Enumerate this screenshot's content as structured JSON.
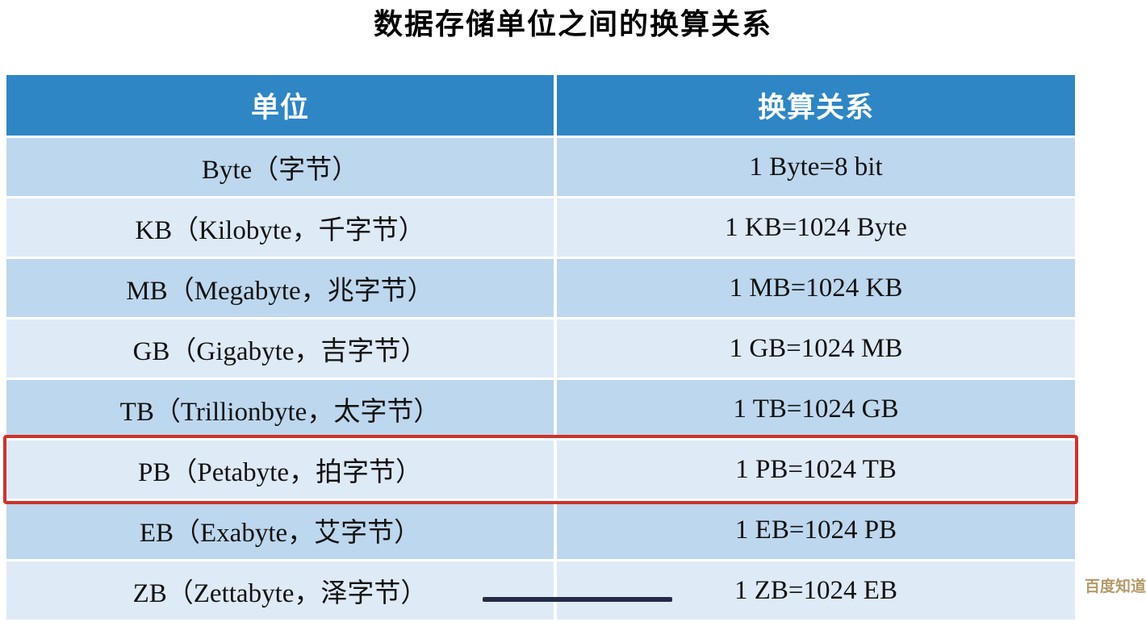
{
  "page": {
    "title": "数据存储单位之间的换算关系"
  },
  "table": {
    "headers": {
      "unit": "单位",
      "conversion": "换算关系"
    },
    "rows": [
      {
        "unit": "Byte（字节）",
        "conversion": "1 Byte=8 bit"
      },
      {
        "unit": "KB（Kilobyte，千字节）",
        "conversion": "1 KB=1024 Byte"
      },
      {
        "unit": "MB（Megabyte，兆字节）",
        "conversion": "1 MB=1024 KB"
      },
      {
        "unit": "GB（Gigabyte，吉字节）",
        "conversion": "1 GB=1024 MB"
      },
      {
        "unit": "TB（Trillionbyte，太字节）",
        "conversion": "1 TB=1024 GB"
      },
      {
        "unit": "PB（Petabyte，拍字节）",
        "conversion": "1 PB=1024 TB"
      },
      {
        "unit": "EB（Exabyte，艾字节）",
        "conversion": "1 EB=1024 PB"
      },
      {
        "unit": "ZB（Zettabyte，泽字节）",
        "conversion": "1 ZB=1024 EB"
      }
    ],
    "highlighted_row_index": 5
  },
  "watermark": {
    "text": "百度知道"
  },
  "colors": {
    "header_bg": "#2E86C5",
    "row_shade_a": "#BDD7EE",
    "row_shade_b": "#DEEAF6",
    "highlight_border": "#CE3229",
    "header_text": "#FFFFFF",
    "cell_text": "#121212",
    "title_text": "#000000",
    "watermark_text": "#B39B69"
  },
  "chart_data": {
    "type": "table",
    "title": "数据存储单位之间的换算关系",
    "columns": [
      "单位",
      "换算关系"
    ],
    "rows": [
      [
        "Byte（字节）",
        "1 Byte=8 bit"
      ],
      [
        "KB（Kilobyte，千字节）",
        "1 KB=1024 Byte"
      ],
      [
        "MB（Megabyte，兆字节）",
        "1 MB=1024 KB"
      ],
      [
        "GB（Gigabyte，吉字节）",
        "1 GB=1024 MB"
      ],
      [
        "TB（Trillionbyte，太字节）",
        "1 TB=1024 GB"
      ],
      [
        "PB（Petabyte，拍字节）",
        "1 PB=1024 TB"
      ],
      [
        "EB（Exabyte，艾字节）",
        "1 EB=1024 PB"
      ],
      [
        "ZB（Zettabyte，泽字节）",
        "1 ZB=1024 EB"
      ]
    ],
    "highlighted_row_index": 5,
    "layout": {
      "grid": "alternating-blue-rows",
      "legend": "none"
    }
  }
}
